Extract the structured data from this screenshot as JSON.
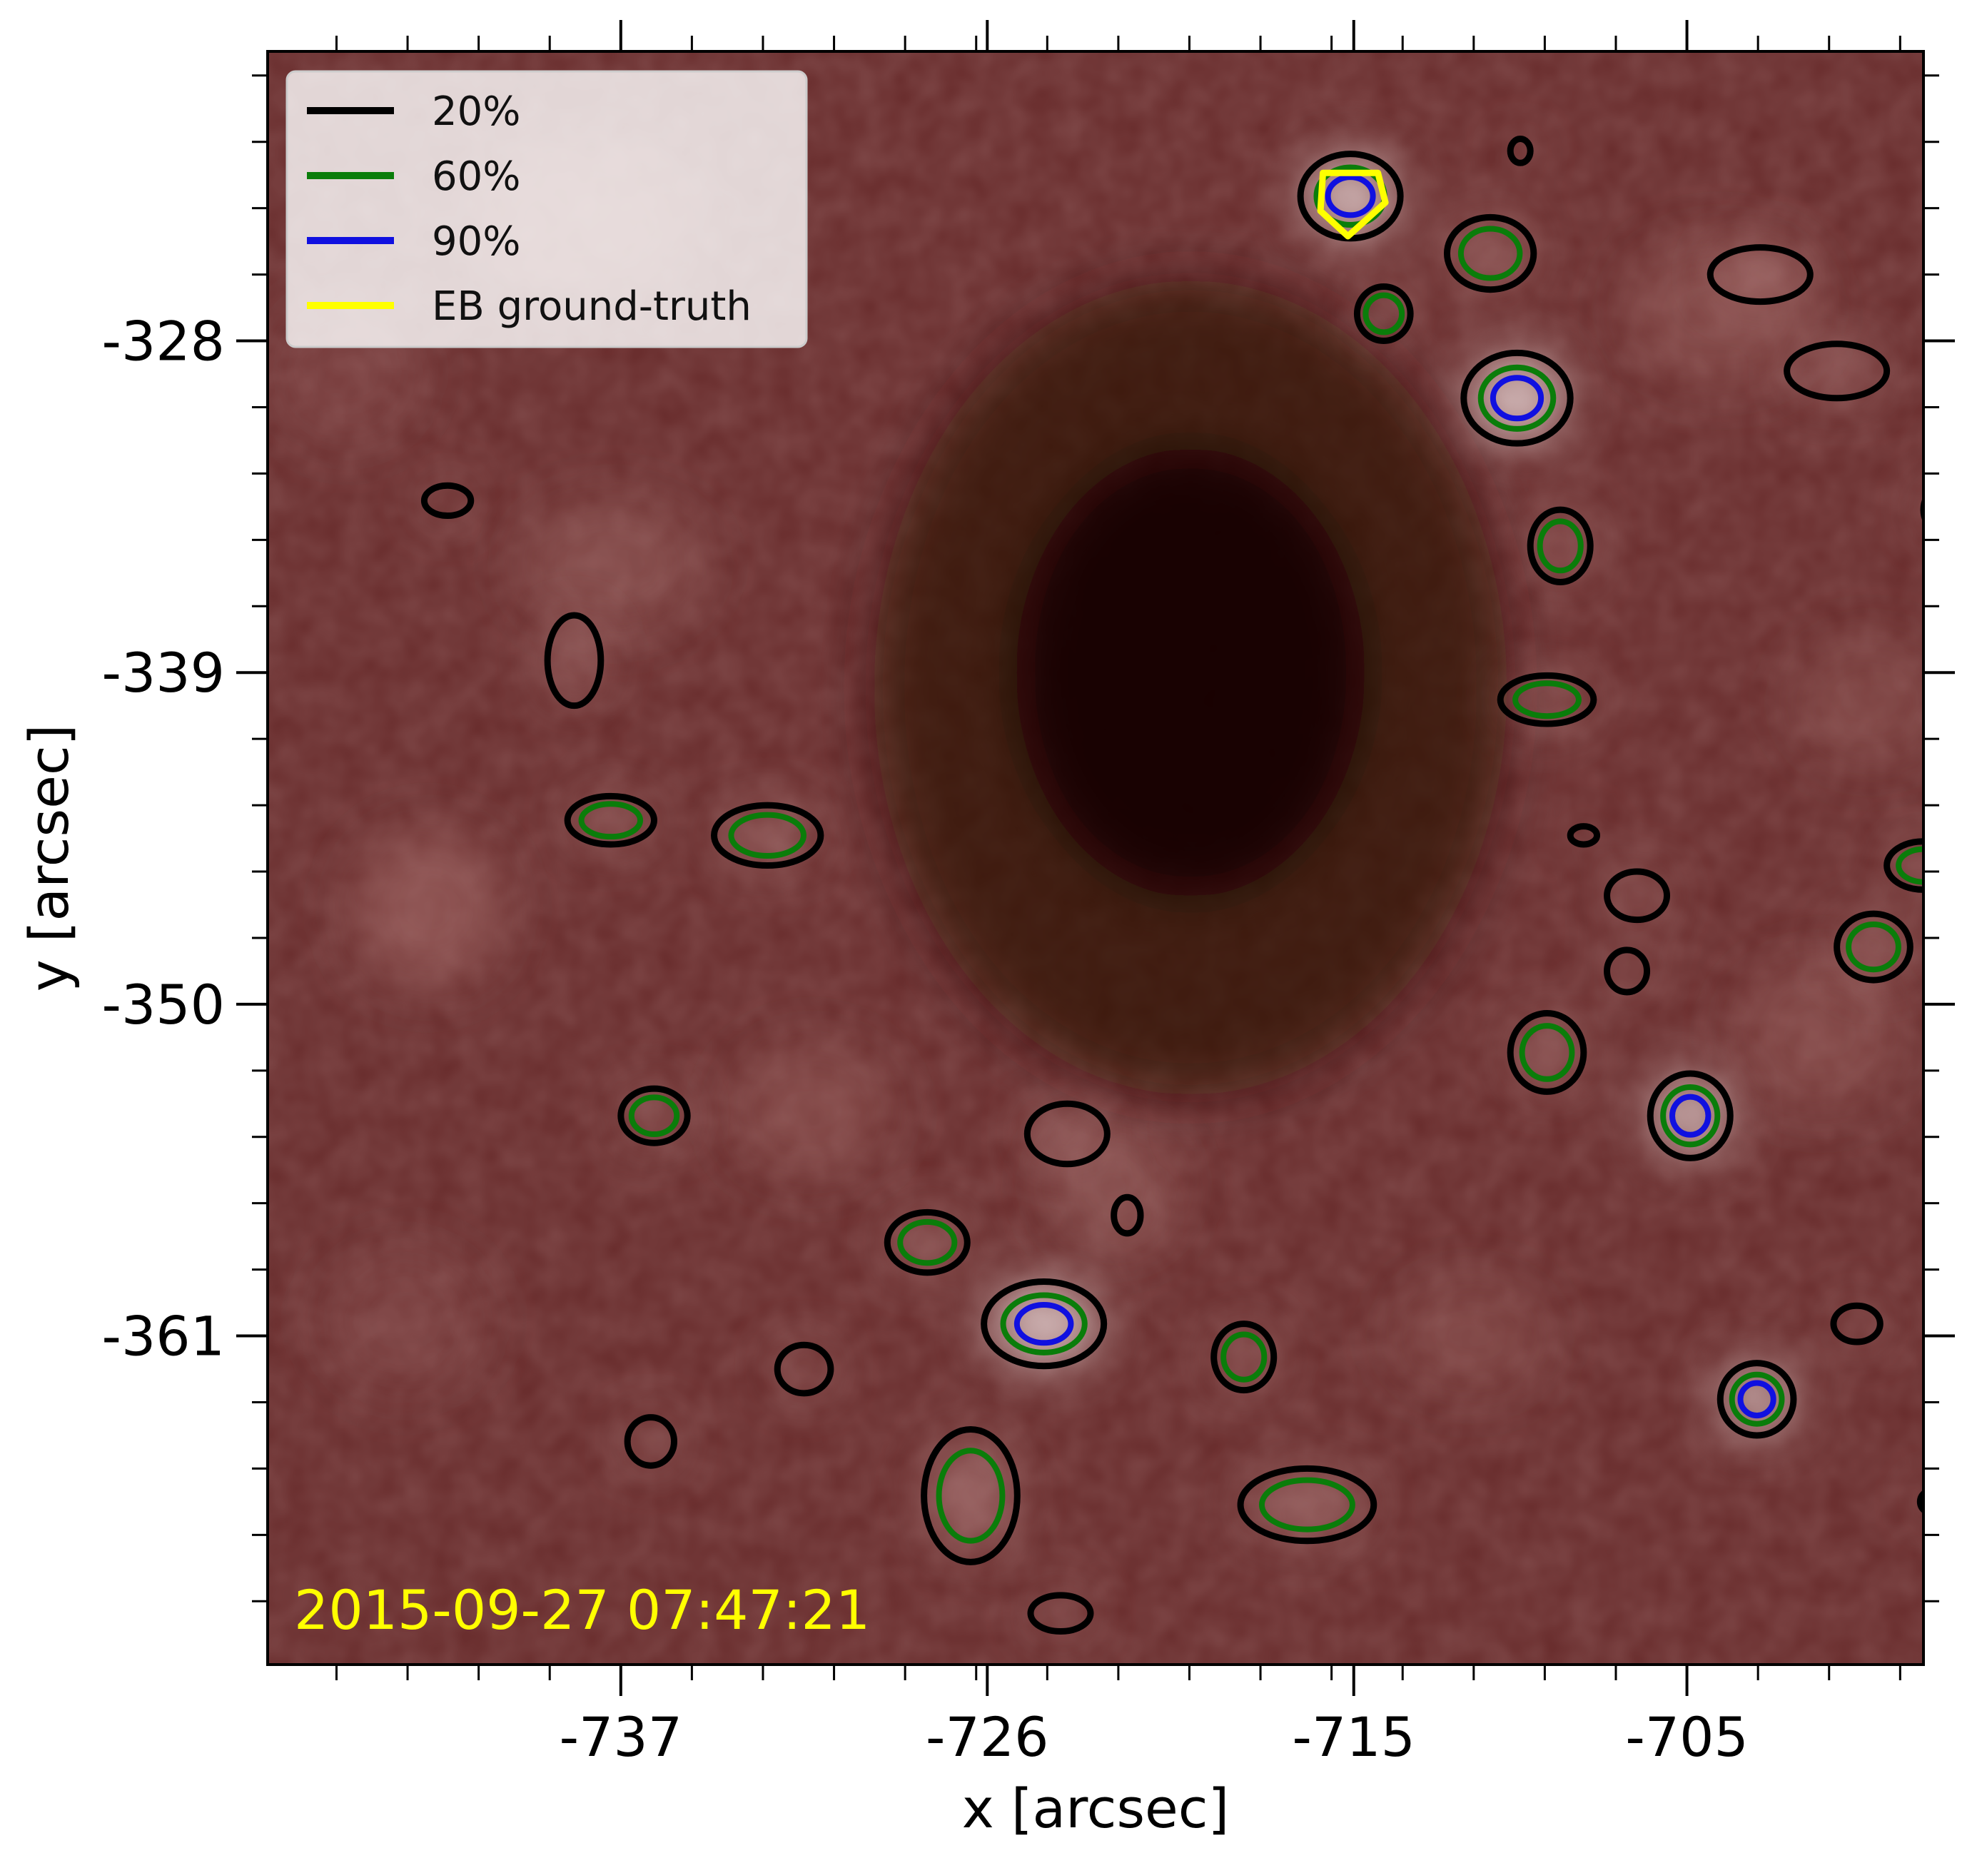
{
  "chart_data": {
    "type": "heatmap",
    "title": "",
    "xlabel": "x [arcsec]",
    "ylabel": "y [arcsec]",
    "xlim": [
      -747.6,
      -697.9
    ],
    "ylim": [
      -371.9,
      -318.4
    ],
    "x_ticks": [
      -737,
      -726,
      -715,
      -705
    ],
    "y_ticks": [
      -328,
      -339,
      -350,
      -361
    ],
    "timestamp": "2015-09-27 07:47:21",
    "colors": {
      "background_base": "#6a2e2e",
      "contour_20": "#000000",
      "contour_60": "#0a7d0a",
      "contour_90": "#1010e0",
      "ground_truth": "#ffff00",
      "timestamp": "#ffff00"
    },
    "legend": {
      "placement": "upper-left",
      "entries": [
        {
          "label": "20%",
          "color": "#000000"
        },
        {
          "label": "60%",
          "color": "#0a7d0a"
        },
        {
          "label": "90%",
          "color": "#1010e0"
        },
        {
          "label": "EB ground-truth",
          "color": "#ffff00"
        }
      ]
    },
    "features": [
      {
        "x": -715.1,
        "y": -323.2,
        "rx": 1.5,
        "ry": 1.4,
        "levels": [
          20,
          60,
          90
        ],
        "ground_truth": true
      },
      {
        "x": -710.1,
        "y": -329.9,
        "rx": 1.6,
        "ry": 1.5,
        "levels": [
          20,
          60,
          90
        ]
      },
      {
        "x": -708.8,
        "y": -334.8,
        "rx": 0.9,
        "ry": 1.2,
        "levels": [
          20,
          60
        ]
      },
      {
        "x": -710.9,
        "y": -325.1,
        "rx": 1.3,
        "ry": 1.2,
        "levels": [
          20,
          60
        ]
      },
      {
        "x": -714.1,
        "y": -327.1,
        "rx": 0.8,
        "ry": 0.9,
        "levels": [
          20,
          60
        ]
      },
      {
        "x": -709.2,
        "y": -339.9,
        "rx": 1.4,
        "ry": 0.8,
        "levels": [
          20,
          60
        ]
      },
      {
        "x": -737.3,
        "y": -343.9,
        "rx": 1.3,
        "ry": 0.8,
        "levels": [
          20,
          60
        ]
      },
      {
        "x": -732.6,
        "y": -344.4,
        "rx": 1.6,
        "ry": 1.0,
        "levels": [
          20,
          60
        ]
      },
      {
        "x": -736.0,
        "y": -353.7,
        "rx": 1.0,
        "ry": 0.9,
        "levels": [
          20,
          60
        ]
      },
      {
        "x": -709.2,
        "y": -351.6,
        "rx": 1.1,
        "ry": 1.3,
        "levels": [
          20,
          60
        ]
      },
      {
        "x": -704.9,
        "y": -353.7,
        "rx": 1.2,
        "ry": 1.4,
        "levels": [
          20,
          60,
          90
        ]
      },
      {
        "x": -724.3,
        "y": -360.6,
        "rx": 1.8,
        "ry": 1.4,
        "levels": [
          20,
          60,
          90
        ]
      },
      {
        "x": -727.8,
        "y": -357.9,
        "rx": 1.2,
        "ry": 1.0,
        "levels": [
          20,
          60
        ]
      },
      {
        "x": -702.9,
        "y": -363.1,
        "rx": 1.1,
        "ry": 1.2,
        "levels": [
          20,
          60,
          90
        ]
      },
      {
        "x": -726.5,
        "y": -366.3,
        "rx": 1.4,
        "ry": 2.2,
        "levels": [
          20,
          60
        ]
      },
      {
        "x": -716.4,
        "y": -366.6,
        "rx": 2.0,
        "ry": 1.2,
        "levels": [
          20,
          60
        ]
      },
      {
        "x": -718.3,
        "y": -361.7,
        "rx": 0.9,
        "ry": 1.1,
        "levels": [
          20,
          60
        ]
      },
      {
        "x": -697.9,
        "y": -345.4,
        "rx": 1.1,
        "ry": 0.8,
        "levels": [
          20,
          60
        ]
      },
      {
        "x": -699.4,
        "y": -348.1,
        "rx": 1.1,
        "ry": 1.1,
        "levels": [
          20,
          60
        ]
      },
      {
        "x": -723.6,
        "y": -354.3,
        "rx": 1.2,
        "ry": 1.0,
        "levels": [
          20
        ]
      },
      {
        "x": -738.4,
        "y": -338.6,
        "rx": 0.8,
        "ry": 1.5,
        "levels": [
          20
        ]
      },
      {
        "x": -742.2,
        "y": -333.3,
        "rx": 0.7,
        "ry": 0.5,
        "levels": [
          20
        ]
      },
      {
        "x": -702.8,
        "y": -325.8,
        "rx": 1.5,
        "ry": 0.9,
        "levels": [
          20
        ]
      },
      {
        "x": -700.5,
        "y": -329.0,
        "rx": 1.5,
        "ry": 0.9,
        "levels": [
          20
        ]
      },
      {
        "x": -697.2,
        "y": -333.6,
        "rx": 0.7,
        "ry": 0.8,
        "levels": [
          20
        ]
      },
      {
        "x": -706.5,
        "y": -346.4,
        "rx": 0.9,
        "ry": 0.8,
        "levels": [
          20
        ]
      },
      {
        "x": -706.8,
        "y": -348.9,
        "rx": 0.6,
        "ry": 0.7,
        "levels": [
          20
        ]
      },
      {
        "x": -731.5,
        "y": -362.1,
        "rx": 0.8,
        "ry": 0.8,
        "levels": [
          20
        ]
      },
      {
        "x": -736.1,
        "y": -364.5,
        "rx": 0.7,
        "ry": 0.8,
        "levels": [
          20
        ]
      },
      {
        "x": -699.9,
        "y": -360.6,
        "rx": 0.7,
        "ry": 0.6,
        "levels": [
          20
        ]
      },
      {
        "x": -723.8,
        "y": -370.2,
        "rx": 0.9,
        "ry": 0.6,
        "levels": [
          20
        ]
      },
      {
        "x": -721.8,
        "y": -357.0,
        "rx": 0.4,
        "ry": 0.6,
        "levels": [
          20
        ]
      },
      {
        "x": -708.1,
        "y": -344.4,
        "rx": 0.4,
        "ry": 0.3,
        "levels": [
          20
        ]
      },
      {
        "x": -710.0,
        "y": -321.7,
        "rx": 0.3,
        "ry": 0.4,
        "levels": [
          20
        ]
      },
      {
        "x": -697.6,
        "y": -366.5,
        "rx": 0.4,
        "ry": 0.4,
        "levels": [
          20
        ]
      }
    ],
    "bright_patches": [
      {
        "x": -742.8,
        "y": -346.8,
        "rx": 2.3,
        "ry": 2.6,
        "amp": 0.45
      },
      {
        "x": -737.3,
        "y": -335.4,
        "rx": 2.8,
        "ry": 2.2,
        "amp": 0.35
      },
      {
        "x": -738.2,
        "y": -324.0,
        "rx": 3.5,
        "ry": 2.8,
        "amp": 0.3
      },
      {
        "x": -731.3,
        "y": -353.5,
        "rx": 2.5,
        "ry": 2.3,
        "amp": 0.3
      },
      {
        "x": -722.2,
        "y": -356.0,
        "rx": 2.0,
        "ry": 2.2,
        "amp": 0.35
      },
      {
        "x": -701.0,
        "y": -351.0,
        "rx": 2.6,
        "ry": 2.5,
        "amp": 0.3
      },
      {
        "x": -699.5,
        "y": -340.0,
        "rx": 2.4,
        "ry": 2.2,
        "amp": 0.25
      },
      {
        "x": -704.0,
        "y": -327.0,
        "rx": 3.0,
        "ry": 2.5,
        "amp": 0.3
      },
      {
        "x": -711.5,
        "y": -361.0,
        "rx": 2.4,
        "ry": 2.0,
        "amp": 0.25
      },
      {
        "x": -743.5,
        "y": -360.5,
        "rx": 2.5,
        "ry": 2.5,
        "amp": 0.2
      },
      {
        "x": -745.2,
        "y": -329.0,
        "rx": 2.3,
        "ry": 2.5,
        "amp": 0.2
      }
    ],
    "dark_region": {
      "x": -719.9,
      "y": -339.5,
      "rx": 9.5,
      "ry": 13.5,
      "amp": 0.9
    }
  }
}
